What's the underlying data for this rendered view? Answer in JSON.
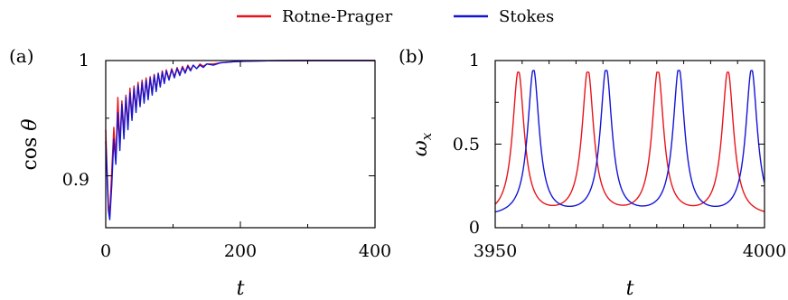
{
  "legend": {
    "items": [
      {
        "label": "Rotne-Prager",
        "color": "#e8141b"
      },
      {
        "label": "Stokes",
        "color": "#1515d6"
      }
    ]
  },
  "chart_data": [
    {
      "type": "line",
      "panel_label": "(a)",
      "xlabel": "t",
      "ylabel": "cos θ",
      "xlim": [
        0,
        400
      ],
      "ylim": [
        0.855,
        1.0
      ],
      "xticks": [
        0,
        200,
        400
      ],
      "xtick_labels": [
        "0",
        "200",
        "400"
      ],
      "yticks": [
        0.9,
        1.0
      ],
      "ytick_labels": [
        "0.9",
        "1"
      ],
      "grid": false,
      "series": [
        {
          "name": "Rotne-Prager",
          "color": "#e8141b",
          "x": [
            0,
            2,
            4,
            6,
            9,
            12,
            15,
            18,
            21,
            24,
            27,
            30,
            33,
            36,
            39,
            42,
            45,
            48,
            51,
            54,
            57,
            60,
            63,
            66,
            69,
            72,
            75,
            78,
            81,
            84,
            87,
            90,
            94,
            98,
            102,
            106,
            110,
            114,
            118,
            122,
            126,
            130,
            135,
            140,
            145,
            150,
            160,
            170,
            180,
            190,
            200,
            220,
            240,
            260,
            300,
            350,
            400
          ],
          "y": [
            0.94,
            0.905,
            0.875,
            0.868,
            0.905,
            0.942,
            0.915,
            0.968,
            0.928,
            0.965,
            0.938,
            0.97,
            0.945,
            0.976,
            0.952,
            0.978,
            0.958,
            0.981,
            0.962,
            0.983,
            0.965,
            0.985,
            0.968,
            0.986,
            0.972,
            0.988,
            0.975,
            0.989,
            0.978,
            0.991,
            0.981,
            0.992,
            0.984,
            0.993,
            0.986,
            0.994,
            0.988,
            0.995,
            0.99,
            0.996,
            0.992,
            0.996,
            0.993,
            0.997,
            0.995,
            0.997,
            0.997,
            0.998,
            0.9985,
            0.999,
            0.9993,
            0.9996,
            0.9998,
            0.9999,
            1.0,
            1.0,
            1.0
          ]
        },
        {
          "name": "Stokes",
          "color": "#1515d6",
          "x": [
            0,
            2,
            4,
            6,
            9,
            12,
            15,
            18,
            21,
            24,
            27,
            30,
            33,
            36,
            39,
            42,
            45,
            48,
            51,
            54,
            57,
            60,
            63,
            66,
            69,
            72,
            75,
            78,
            81,
            84,
            87,
            90,
            94,
            98,
            102,
            106,
            110,
            114,
            118,
            122,
            126,
            130,
            135,
            140,
            145,
            150,
            160,
            170,
            180,
            190,
            200,
            220,
            240,
            260,
            300,
            350,
            400
          ],
          "y": [
            0.93,
            0.9,
            0.87,
            0.862,
            0.892,
            0.932,
            0.91,
            0.955,
            0.922,
            0.962,
            0.932,
            0.968,
            0.94,
            0.972,
            0.948,
            0.976,
            0.955,
            0.979,
            0.96,
            0.981,
            0.963,
            0.983,
            0.966,
            0.985,
            0.97,
            0.987,
            0.973,
            0.989,
            0.977,
            0.99,
            0.98,
            0.991,
            0.983,
            0.992,
            0.985,
            0.993,
            0.987,
            0.994,
            0.989,
            0.995,
            0.991,
            0.996,
            0.993,
            0.996,
            0.994,
            0.997,
            0.996,
            0.998,
            0.9985,
            0.999,
            0.9993,
            0.9996,
            0.9998,
            0.9999,
            1.0,
            1.0,
            1.0
          ]
        }
      ]
    },
    {
      "type": "line",
      "panel_label": "(b)",
      "xlabel": "t",
      "ylabel": "ω_x",
      "xlim": [
        3950,
        4000
      ],
      "ylim": [
        0,
        1.0
      ],
      "xticks": [
        3950,
        4000
      ],
      "xtick_labels": [
        "3950",
        "4000"
      ],
      "yticks": [
        0,
        0.5,
        1.0
      ],
      "ytick_labels": [
        "0",
        "0.5",
        "1"
      ],
      "grid": false,
      "series": [
        {
          "name": "Rotne-Prager",
          "color": "#e8141b",
          "peak_times": [
            3954.3,
            3967.2,
            3980.2,
            3993.2
          ],
          "peak_value": 0.93,
          "baseline": 0.06,
          "peak_width": 1.3
        },
        {
          "name": "Stokes",
          "color": "#1515d6",
          "peak_times": [
            3957.1,
            3970.6,
            3984.1,
            3997.6
          ],
          "peak_value": 0.94,
          "baseline": 0.06,
          "peak_width": 1.3
        }
      ]
    }
  ]
}
